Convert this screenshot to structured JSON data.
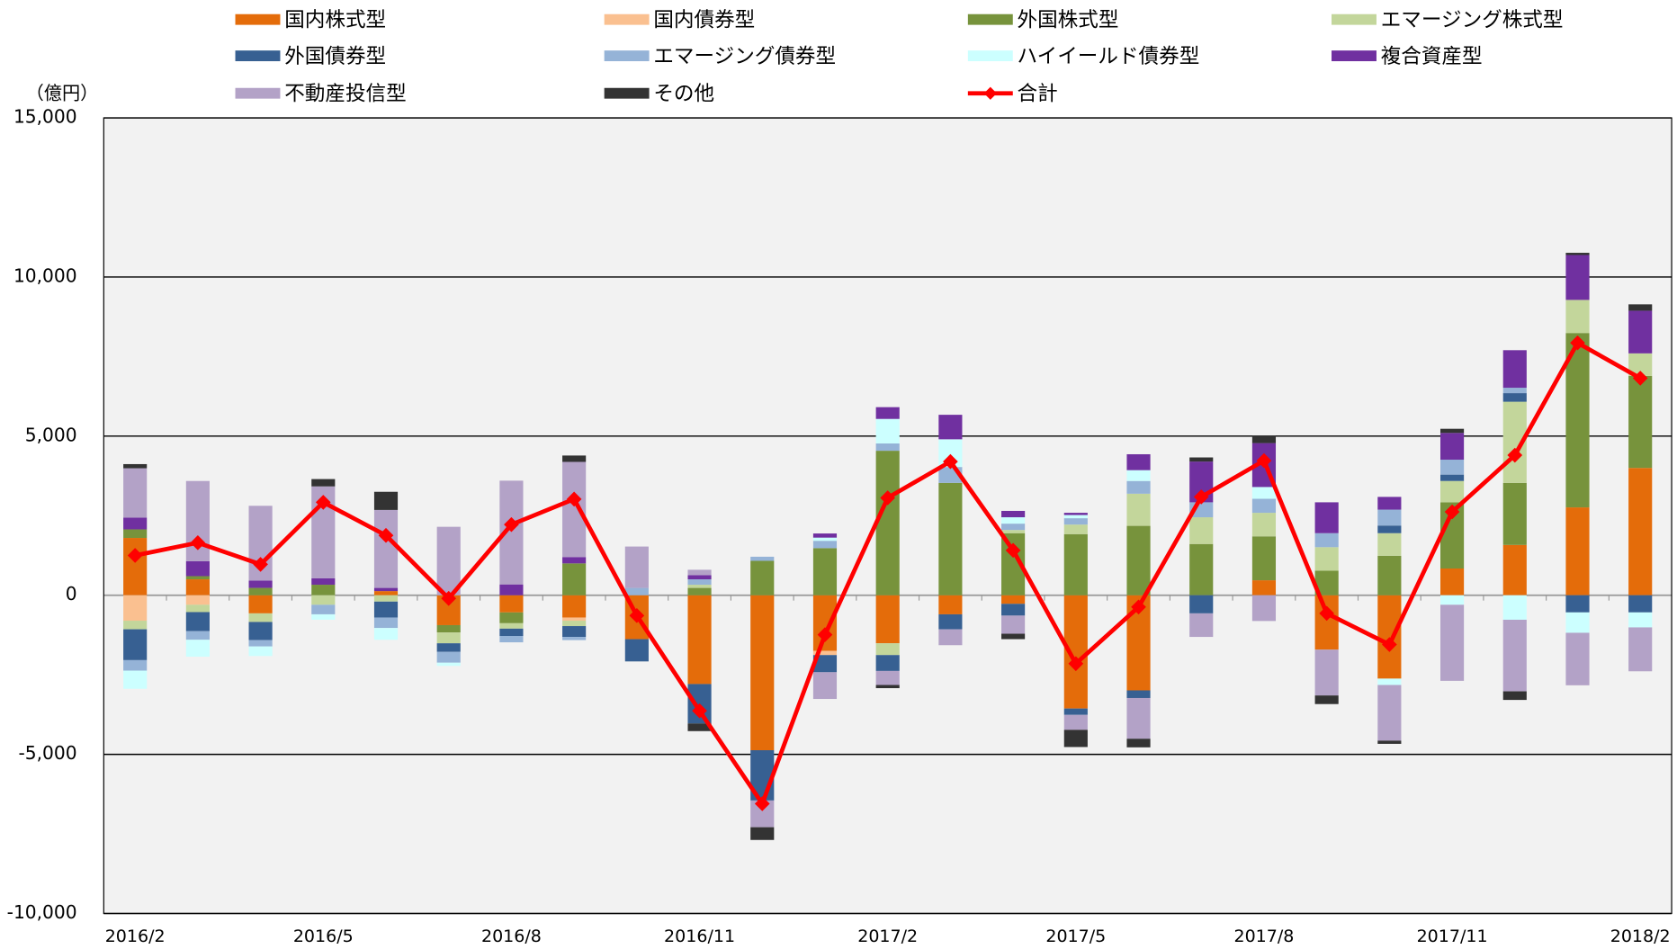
{
  "chart_data": {
    "type": "bar",
    "stacked": true,
    "y_label": "（億円）",
    "categories": [
      "2016/2",
      null,
      null,
      "2016/5",
      null,
      null,
      "2016/8",
      null,
      null,
      "2016/11",
      null,
      null,
      "2017/2",
      null,
      null,
      "2017/5",
      null,
      null,
      "2017/8",
      null,
      null,
      "2017/11",
      null,
      null,
      "2018/2"
    ],
    "ylim": [
      -10000,
      15000
    ],
    "yticks": [
      {
        "value": -10000,
        "label": "-10,000"
      },
      {
        "value": -5000,
        "label": "-5,000"
      },
      0,
      {
        "value": 5000,
        "label": "5,000"
      },
      {
        "value": 10000,
        "label": "10,000"
      },
      {
        "value": 15000,
        "label": "15,000"
      }
    ],
    "grid": true,
    "series": [
      {
        "name": "国内株式型",
        "color": "#E46C0A",
        "values": [
          1800,
          500,
          -570,
          0,
          130,
          -940,
          -540,
          -700,
          -1380,
          -2790,
          -4870,
          -1750,
          -1510,
          -600,
          -270,
          -3560,
          -2990,
          0,
          470,
          -1710,
          -2620,
          840,
          1580,
          2760,
          4000
        ]
      },
      {
        "name": "国内債券型",
        "color": "#FAC090",
        "values": [
          -800,
          -300,
          0,
          0,
          0,
          0,
          0,
          -100,
          0,
          0,
          0,
          -130,
          0,
          0,
          0,
          0,
          0,
          0,
          0,
          0,
          0,
          0,
          0,
          0,
          0
        ]
      },
      {
        "name": "外国株式型",
        "color": "#77933C",
        "values": [
          270,
          100,
          230,
          330,
          0,
          -230,
          -340,
          1000,
          0,
          230,
          1080,
          1480,
          4540,
          3530,
          1950,
          1920,
          2180,
          1610,
          1380,
          770,
          1240,
          2080,
          1950,
          5480,
          2890
        ]
      },
      {
        "name": "エマージング株式型",
        "color": "#C3D69B",
        "values": [
          -270,
          -230,
          -270,
          -300,
          -200,
          -340,
          -170,
          -170,
          0,
          100,
          0,
          0,
          -370,
          0,
          100,
          300,
          1010,
          840,
          740,
          740,
          710,
          670,
          2550,
          1040,
          710
        ]
      },
      {
        "name": "外国債券型",
        "color": "#376092",
        "values": [
          -970,
          -600,
          -570,
          0,
          -500,
          -270,
          -230,
          -340,
          -700,
          -1240,
          -1580,
          -540,
          -500,
          -470,
          -370,
          -200,
          -240,
          -570,
          0,
          0,
          240,
          200,
          270,
          -540,
          -540
        ]
      },
      {
        "name": "エマージング債券型",
        "color": "#95B3D7",
        "values": [
          -330,
          -270,
          -200,
          -300,
          -330,
          -340,
          -200,
          -100,
          230,
          170,
          130,
          230,
          230,
          500,
          200,
          200,
          400,
          470,
          440,
          440,
          500,
          470,
          170,
          0,
          0
        ]
      },
      {
        "name": "ハイイールド債券型",
        "color": "#CCFFFF",
        "values": [
          -570,
          -530,
          -300,
          -170,
          -370,
          -100,
          0,
          0,
          0,
          0,
          0,
          100,
          770,
          870,
          200,
          100,
          340,
          0,
          370,
          0,
          -200,
          -300,
          -770,
          -640,
          -470
        ]
      },
      {
        "name": "複合資産型",
        "color": "#7030A0",
        "values": [
          370,
          470,
          230,
          200,
          100,
          0,
          340,
          200,
          0,
          130,
          0,
          130,
          370,
          770,
          200,
          70,
          500,
          1280,
          1380,
          970,
          400,
          840,
          1180,
          1410,
          1340
        ]
      },
      {
        "name": "不動産投信型",
        "color": "#B3A2C7",
        "values": [
          1550,
          2520,
          2350,
          2890,
          2450,
          2150,
          3260,
          2990,
          1300,
          170,
          -840,
          -840,
          -440,
          -500,
          -570,
          -470,
          -1280,
          -740,
          -810,
          -1440,
          -1750,
          -2390,
          -2250,
          -1650,
          -1380
        ]
      },
      {
        "name": "その他",
        "color": "#333333",
        "values": [
          130,
          0,
          0,
          230,
          570,
          0,
          0,
          200,
          0,
          -240,
          -400,
          0,
          -100,
          0,
          -170,
          -540,
          -270,
          130,
          240,
          -270,
          -100,
          130,
          -270,
          70,
          200
        ]
      },
      {
        "name": "合計",
        "color": "#FF0000",
        "type": "line",
        "values": [
          1250,
          1650,
          970,
          2920,
          1880,
          -100,
          2220,
          3020,
          -640,
          -3630,
          -6550,
          -1240,
          3060,
          4200,
          1410,
          -2150,
          -370,
          3090,
          4230,
          -570,
          -1550,
          2620,
          4400,
          7930,
          6820
        ]
      }
    ]
  }
}
